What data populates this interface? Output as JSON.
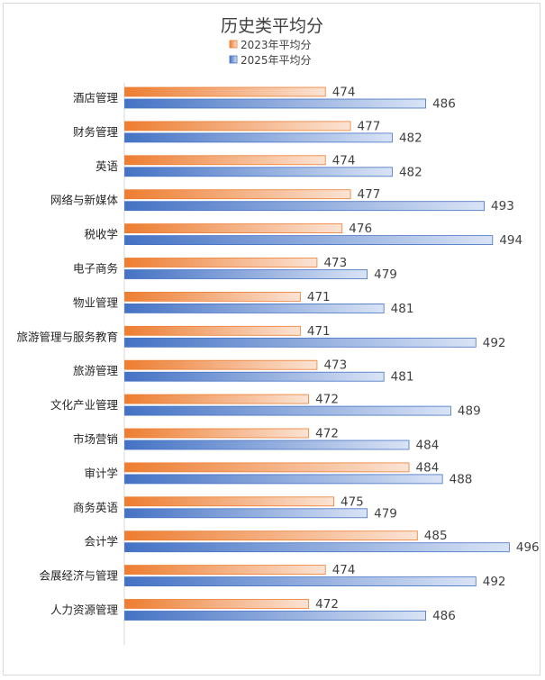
{
  "chart_data": {
    "type": "bar",
    "orientation": "horizontal",
    "title": "历史类平均分",
    "categories": [
      "酒店管理",
      "财务管理",
      "英语",
      "网络与新媒体",
      "税收学",
      "电子商务",
      "物业管理",
      "旅游管理与服务教育",
      "旅游管理",
      "文化产业管理",
      "市场营销",
      "审计学",
      "商务英语",
      "会计学",
      "会展经济与管理",
      "人力资源管理"
    ],
    "series": [
      {
        "name": "2023年平均分",
        "values": [
          474,
          477,
          474,
          477,
          476,
          473,
          471,
          471,
          473,
          472,
          472,
          484,
          475,
          485,
          474,
          472
        ]
      },
      {
        "name": "2025年平均分",
        "values": [
          486,
          482,
          482,
          493,
          494,
          479,
          481,
          492,
          481,
          489,
          484,
          488,
          479,
          496,
          492,
          486
        ]
      }
    ],
    "axis_min": 450,
    "axis_max": 500,
    "xlabel": "",
    "ylabel": "",
    "grid": false,
    "legend_position": "top",
    "colors": {
      "series1_dark": "#ED7D31",
      "series1_light": "#FBE3D4",
      "series2_dark": "#4472C4",
      "series2_light": "#D9E3F5",
      "series1_border": "#ED7D31",
      "series2_border": "#4472C4"
    }
  }
}
